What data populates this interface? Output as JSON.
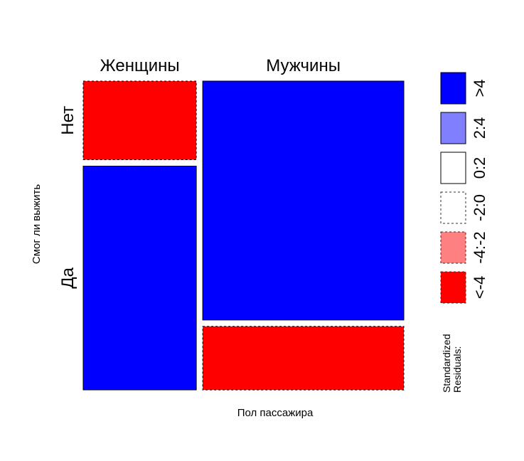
{
  "chart_data": {
    "type": "mosaic",
    "xlabel": "Пол пассажира",
    "ylabel": "Смог ли выжить",
    "columns": [
      "Женщины",
      "Мужчины"
    ],
    "rows": [
      "Нет",
      "Да"
    ],
    "column_widths": [
      0.36,
      0.64
    ],
    "row_split_by_column": {
      "Женщины": {
        "Нет": 0.26,
        "Да": 0.74
      },
      "Мужчины": {
        "Нет": 0.79,
        "Да": 0.21
      }
    },
    "cells": [
      {
        "column": "Женщины",
        "row": "Нет",
        "residual_class": "<-4"
      },
      {
        "column": "Женщины",
        "row": "Да",
        "residual_class": ">4"
      },
      {
        "column": "Мужчины",
        "row": "Нет",
        "residual_class": ">4"
      },
      {
        "column": "Мужчины",
        "row": "Да",
        "residual_class": "<-4"
      }
    ],
    "legend": {
      "title": "Standardized\nResiduals:",
      "entries": [
        {
          "label": ">4",
          "color": "#0000ff",
          "dashed": false
        },
        {
          "label": "2:4",
          "color": "#8080ff",
          "dashed": false
        },
        {
          "label": "0:2",
          "color": "#ffffff",
          "dashed": false
        },
        {
          "label": "-2:0",
          "color": "#ffffff",
          "dashed": true
        },
        {
          "label": "-4:-2",
          "color": "#ff8080",
          "dashed": true
        },
        {
          "label": "<-4",
          "color": "#ff0000",
          "dashed": true
        }
      ]
    }
  }
}
